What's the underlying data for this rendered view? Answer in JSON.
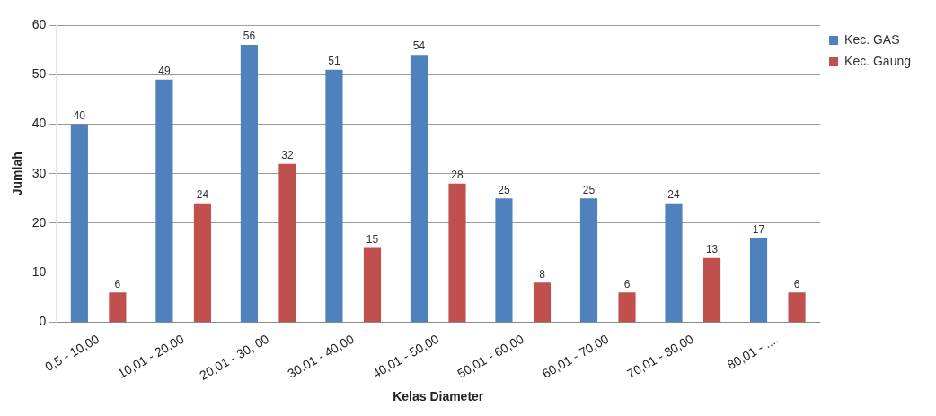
{
  "chart_data": {
    "type": "bar",
    "xlabel": "Kelas Diameter",
    "ylabel": "Jumlah",
    "categories": [
      "0,5 - 10,00",
      "10,01 - 20,00",
      "20,01 - 30, 00",
      "30,01 - 40,00",
      "40,01 - 50,00",
      "50,01 - 60,00",
      "60,01 - 70,00",
      "70,01 - 80,00",
      "80,01 - ...."
    ],
    "series": [
      {
        "name": "Kec. GAS",
        "color": "#4f81bd",
        "values": [
          40,
          49,
          56,
          51,
          54,
          25,
          25,
          24,
          17
        ]
      },
      {
        "name": "Kec. Gaung",
        "color": "#c0504d",
        "values": [
          6,
          24,
          32,
          15,
          28,
          8,
          6,
          13,
          6
        ]
      }
    ],
    "ylim": [
      0,
      60
    ],
    "yticks": [
      0,
      10,
      20,
      30,
      40,
      50,
      60
    ],
    "grid": "y",
    "legend": "top right",
    "data_labels": true
  }
}
